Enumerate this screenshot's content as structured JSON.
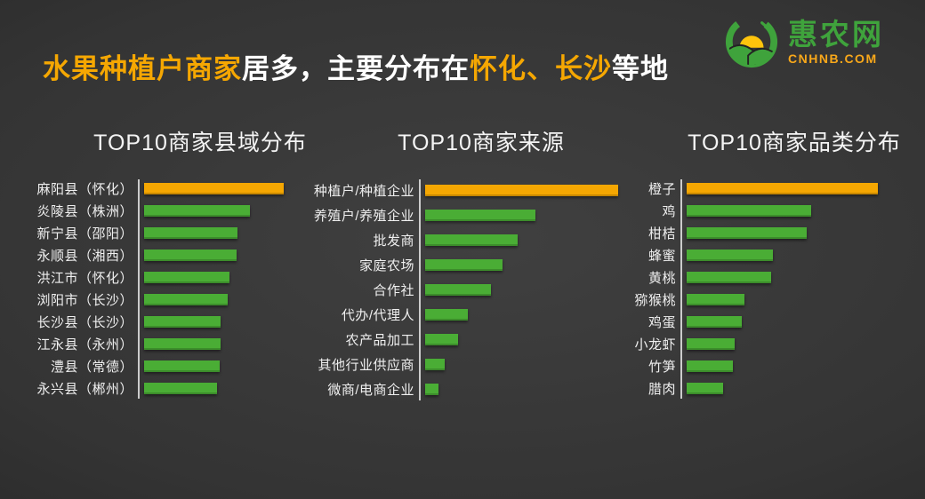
{
  "header": {
    "title_segments": [
      {
        "text": "水果种植户商家",
        "highlight": true
      },
      {
        "text": "居多，主要分布在",
        "highlight": false
      },
      {
        "text": "怀化、长沙",
        "highlight": true
      },
      {
        "text": "等地",
        "highlight": false
      }
    ],
    "logo": {
      "brand": "惠农网",
      "domain": "CNHNB.COM"
    }
  },
  "colors": {
    "highlight_orange": "#F5A702",
    "bar_green": "#4AAD35",
    "logo_green": "#3FA33C",
    "logo_sun_yellow": "#FFC40C",
    "logo_orange": "#F9A81A",
    "axis_line": "#CCCCCC",
    "text_light": "#F2F2F2"
  },
  "chart_data": [
    {
      "type": "bar",
      "orientation": "horizontal",
      "title": "TOP10商家县域分布",
      "categories": [
        "麻阳县（怀化）",
        "炎陵县（株洲）",
        "新宁县（邵阳）",
        "永顺县（湘西）",
        "洪江市（怀化）",
        "浏阳市（长沙）",
        "长沙县（长沙）",
        "江永县（永州）",
        "澧县（常德）",
        "永兴县（郴州）"
      ],
      "values": [
        100,
        76,
        67,
        66,
        61,
        60,
        55,
        55,
        54,
        52
      ],
      "highlight_index": 0,
      "value_note": "relative bar length, % of longest bar (no numeric labels shown in image)",
      "xlim": [
        0,
        100
      ],
      "grid": false,
      "legend": false
    },
    {
      "type": "bar",
      "orientation": "horizontal",
      "title": "TOP10商家来源",
      "categories": [
        "种植户/种植企业",
        "养殖户/养殖企业",
        "批发商",
        "家庭农场",
        "合作社",
        "代办/代理人",
        "农产品加工",
        "其他行业供应商",
        "微商/电商企业"
      ],
      "values": [
        100,
        57,
        48,
        40,
        34,
        22,
        17,
        10,
        7
      ],
      "highlight_index": 0,
      "value_note": "relative bar length, % of longest bar (no numeric labels shown in image)",
      "xlim": [
        0,
        100
      ],
      "grid": false,
      "legend": false
    },
    {
      "type": "bar",
      "orientation": "horizontal",
      "title": "TOP10商家品类分布",
      "categories": [
        "橙子",
        "鸡",
        "柑桔",
        "蜂蜜",
        "黄桃",
        "猕猴桃",
        "鸡蛋",
        "小龙虾",
        "竹笋",
        "腊肉"
      ],
      "values": [
        100,
        65,
        63,
        45,
        44,
        30,
        29,
        25,
        24,
        19
      ],
      "highlight_index": 0,
      "value_note": "relative bar length, % of longest bar (no numeric labels shown in image)",
      "xlim": [
        0,
        100
      ],
      "grid": false,
      "legend": false
    }
  ]
}
